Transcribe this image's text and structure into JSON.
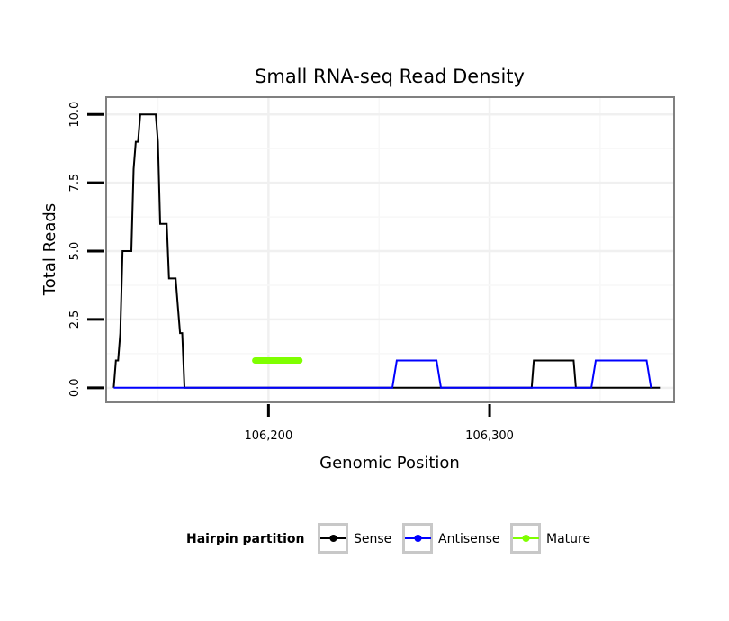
{
  "chart_data": {
    "type": "line",
    "title": "Small RNA-seq Read Density",
    "xlabel": "Genomic Position",
    "ylabel": "Total Reads",
    "xlim": [
      106127,
      106383
    ],
    "ylim": [
      -0.5,
      10.6
    ],
    "x_ticks": [
      106200,
      106300
    ],
    "x_tick_labels": [
      "106,200",
      "106,300"
    ],
    "y_ticks": [
      0,
      2.5,
      5,
      7.5,
      10
    ],
    "y_tick_labels": [
      "0.0",
      "2.5",
      "5.0",
      "7.5",
      "10.0"
    ],
    "grid": true,
    "legend": {
      "title": "Hairpin partition",
      "position": "bottom",
      "entries": [
        "Sense",
        "Antisense",
        "Mature"
      ]
    },
    "series": [
      {
        "name": "Sense",
        "color": "#000000",
        "x": [
          106130,
          106131,
          106132,
          106133,
          106134,
          106135,
          106138,
          106139,
          106140,
          106141,
          106142,
          106144,
          106149,
          106150,
          106151,
          106154,
          106155,
          106157,
          106158,
          106159,
          106160,
          106161,
          106162,
          106163,
          106193,
          106214,
          106256,
          106319,
          106320,
          106338,
          106339,
          106377
        ],
        "y": [
          0,
          1,
          1,
          2,
          5,
          5,
          5,
          8,
          9,
          9,
          10,
          10,
          10,
          9,
          6,
          6,
          4,
          4,
          4,
          3,
          2,
          2,
          0,
          0,
          0,
          0,
          0,
          0,
          1,
          1,
          0,
          0
        ]
      },
      {
        "name": "Antisense",
        "color": "#0000ff",
        "x": [
          106130,
          106256,
          106258,
          106276,
          106278,
          106320,
          106338,
          106346,
          106348,
          106371,
          106373
        ],
        "y": [
          0,
          0,
          1,
          1,
          0,
          0,
          0,
          0,
          1,
          1,
          0
        ]
      },
      {
        "name": "Mature",
        "color": "#7fff00",
        "x": [
          106194,
          106214
        ],
        "y": [
          1,
          1
        ]
      }
    ]
  }
}
